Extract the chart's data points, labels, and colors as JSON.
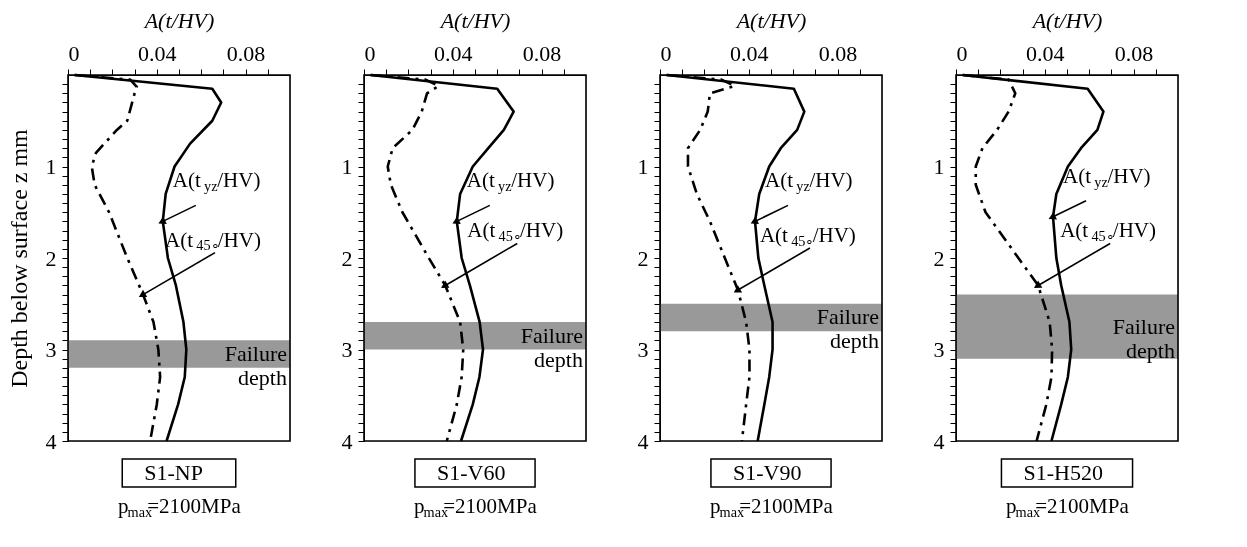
{
  "chart_data": [
    {
      "type": "line",
      "xlabel": "A(t/HV)",
      "ylabel": "Depth below surface  z  mm",
      "title": "S1-NP",
      "subtitle": "p$_{max}$=2100MPa",
      "xlim": [
        0,
        0.1
      ],
      "xticks": [
        0,
        {
          "value": 0.01,
          "label": null
        },
        {
          "value": 0.02,
          "label": null
        },
        {
          "value": 0.03,
          "label": null
        },
        0.04,
        {
          "value": 0.05,
          "label": null
        },
        {
          "value": 0.06,
          "label": null
        },
        {
          "value": 0.07,
          "label": null
        },
        0.08,
        {
          "value": 0.09,
          "label": null
        }
      ],
      "ylim": [
        4,
        0
      ],
      "yticks": [
        {
          "value": 0.1,
          "label": null
        },
        {
          "value": 0.2,
          "label": null
        },
        {
          "value": 0.3,
          "label": null
        },
        {
          "value": 0.4,
          "label": null
        },
        {
          "value": 0.5,
          "label": null
        },
        {
          "value": 0.6,
          "label": null
        },
        {
          "value": 0.7,
          "label": null
        },
        {
          "value": 0.8,
          "label": null
        },
        {
          "value": 0.9,
          "label": null
        },
        1,
        {
          "value": 1.1,
          "label": null
        },
        {
          "value": 1.2,
          "label": null
        },
        {
          "value": 1.3,
          "label": null
        },
        {
          "value": 1.4,
          "label": null
        },
        {
          "value": 1.5,
          "label": null
        },
        {
          "value": 1.6,
          "label": null
        },
        {
          "value": 1.7,
          "label": null
        },
        {
          "value": 1.8,
          "label": null
        },
        {
          "value": 1.9,
          "label": null
        },
        2,
        {
          "value": 2.1,
          "label": null
        },
        {
          "value": 2.2,
          "label": null
        },
        {
          "value": 2.3,
          "label": null
        },
        {
          "value": 2.4,
          "label": null
        },
        {
          "value": 2.5,
          "label": null
        },
        {
          "value": 2.6,
          "label": null
        },
        {
          "value": 2.7,
          "label": null
        },
        {
          "value": 2.8,
          "label": null
        },
        {
          "value": 2.9,
          "label": null
        },
        3,
        {
          "value": 3.1,
          "label": null
        },
        {
          "value": 3.2,
          "label": null
        },
        {
          "value": 3.3,
          "label": null
        },
        {
          "value": 3.4,
          "label": null
        },
        {
          "value": 3.5,
          "label": null
        },
        {
          "value": 3.6,
          "label": null
        },
        {
          "value": 3.7,
          "label": null
        },
        {
          "value": 3.8,
          "label": null
        },
        {
          "value": 3.9,
          "label": null
        },
        4
      ],
      "grid": false,
      "series": [
        {
          "color": "#000000",
          "line_style": "solid",
          "x": [
            0.003,
            0.065,
            0.069,
            0.065,
            0.055,
            0.048,
            0.044,
            0.0427,
            0.045,
            0.0486,
            0.052,
            0.0533,
            0.0526,
            0.0496,
            0.0444
          ],
          "values": [
            0,
            0.15,
            0.3,
            0.5,
            0.75,
            1,
            1.3,
            1.6,
            2,
            2.3,
            2.7,
            3,
            3.3,
            3.6,
            4
          ]
        },
        {
          "color": "#000000",
          "line_style": "dashed",
          "x": [
            0.003,
            0.028,
            0.031,
            0.03,
            0.0267,
            0.022,
            0.0126,
            0.0107,
            0.012,
            0.0185,
            0.0267,
            0.0338,
            0.0385,
            0.0407,
            0.0415,
            0.04,
            0.037
          ],
          "values": [
            0,
            0.05,
            0.13,
            0.2,
            0.5,
            0.6,
            0.85,
            1,
            1.2,
            1.5,
            2,
            2.4,
            2.7,
            3,
            3.3,
            3.6,
            4
          ]
        }
      ],
      "bands": [
        {
          "axis": "y",
          "from": 2.9,
          "to": 3.2,
          "label": "Failure depth",
          "color": "#999999"
        }
      ],
      "annotations": [
        {
          "text": "A(t$_{yz}$/HV)",
          "x": 0.0427,
          "y": 1.6
        },
        {
          "text": "A(t$_{45∘}$/HV)",
          "x": 0.0338,
          "y": 2.4
        }
      ]
    },
    {
      "type": "line",
      "xlabel": "A(t/HV)",
      "title": "S1-V60",
      "subtitle": "p$_{max}$=2100MPa",
      "xlim": [
        0,
        0.1
      ],
      "xticks": [
        0,
        {
          "value": 0.01,
          "label": null
        },
        {
          "value": 0.02,
          "label": null
        },
        {
          "value": 0.03,
          "label": null
        },
        0.04,
        {
          "value": 0.05,
          "label": null
        },
        {
          "value": 0.06,
          "label": null
        },
        {
          "value": 0.07,
          "label": null
        },
        0.08,
        {
          "value": 0.09,
          "label": null
        }
      ],
      "ylim": [
        4,
        0
      ],
      "yticks": [
        {
          "value": 0.1,
          "label": null
        },
        {
          "value": 0.2,
          "label": null
        },
        {
          "value": 0.3,
          "label": null
        },
        {
          "value": 0.4,
          "label": null
        },
        {
          "value": 0.5,
          "label": null
        },
        {
          "value": 0.6,
          "label": null
        },
        {
          "value": 0.7,
          "label": null
        },
        {
          "value": 0.8,
          "label": null
        },
        {
          "value": 0.9,
          "label": null
        },
        1,
        {
          "value": 1.1,
          "label": null
        },
        {
          "value": 1.2,
          "label": null
        },
        {
          "value": 1.3,
          "label": null
        },
        {
          "value": 1.4,
          "label": null
        },
        {
          "value": 1.5,
          "label": null
        },
        {
          "value": 1.6,
          "label": null
        },
        {
          "value": 1.7,
          "label": null
        },
        {
          "value": 1.8,
          "label": null
        },
        {
          "value": 1.9,
          "label": null
        },
        2,
        {
          "value": 2.1,
          "label": null
        },
        {
          "value": 2.2,
          "label": null
        },
        {
          "value": 2.3,
          "label": null
        },
        {
          "value": 2.4,
          "label": null
        },
        {
          "value": 2.5,
          "label": null
        },
        {
          "value": 2.6,
          "label": null
        },
        {
          "value": 2.7,
          "label": null
        },
        {
          "value": 2.8,
          "label": null
        },
        {
          "value": 2.9,
          "label": null
        },
        3,
        {
          "value": 3.1,
          "label": null
        },
        {
          "value": 3.2,
          "label": null
        },
        {
          "value": 3.3,
          "label": null
        },
        {
          "value": 3.4,
          "label": null
        },
        {
          "value": 3.5,
          "label": null
        },
        {
          "value": 3.6,
          "label": null
        },
        {
          "value": 3.7,
          "label": null
        },
        {
          "value": 3.8,
          "label": null
        },
        {
          "value": 3.9,
          "label": null
        },
        4
      ],
      "grid": false,
      "series": [
        {
          "color": "#000000",
          "line_style": "solid",
          "x": [
            0.003,
            0.06,
            0.0674,
            0.063,
            0.056,
            0.049,
            0.0433,
            0.0418,
            0.044,
            0.0477,
            0.0521,
            0.0536,
            0.052,
            0.049,
            0.0437
          ],
          "values": [
            0,
            0.15,
            0.4,
            0.6,
            0.8,
            1,
            1.3,
            1.6,
            2,
            2.3,
            2.7,
            3,
            3.3,
            3.6,
            4
          ]
        },
        {
          "color": "#000000",
          "line_style": "dashed",
          "x": [
            0.003,
            0.0277,
            0.0336,
            0.0284,
            0.026,
            0.0218,
            0.0129,
            0.0107,
            0.0121,
            0.0173,
            0.0292,
            0.0366,
            0.0433,
            0.0447,
            0.044,
            0.0418,
            0.0373
          ],
          "values": [
            0,
            0.05,
            0.12,
            0.2,
            0.4,
            0.6,
            0.8,
            1,
            1.2,
            1.5,
            2,
            2.3,
            2.7,
            3,
            3.3,
            3.6,
            4
          ]
        }
      ],
      "bands": [
        {
          "axis": "y",
          "from": 2.7,
          "to": 3.0,
          "label": "Failure depth",
          "color": "#999999"
        }
      ],
      "annotations": [
        {
          "text": "A(t$_{yz}$/HV)",
          "x": 0.0418,
          "y": 1.6
        },
        {
          "text": "A(t$_{45∘}$/HV)",
          "x": 0.0366,
          "y": 2.3
        }
      ]
    },
    {
      "type": "line",
      "xlabel": "A(t/HV)",
      "title": "S1-V90",
      "subtitle": "p$_{max}$=2100MPa",
      "xlim": [
        0,
        0.1
      ],
      "xticks": [
        0,
        {
          "value": 0.01,
          "label": null
        },
        {
          "value": 0.02,
          "label": null
        },
        {
          "value": 0.03,
          "label": null
        },
        0.04,
        {
          "value": 0.05,
          "label": null
        },
        {
          "value": 0.06,
          "label": null
        },
        {
          "value": 0.07,
          "label": null
        },
        0.08,
        {
          "value": 0.09,
          "label": null
        }
      ],
      "ylim": [
        4,
        0
      ],
      "yticks": [
        {
          "value": 0.1,
          "label": null
        },
        {
          "value": 0.2,
          "label": null
        },
        {
          "value": 0.3,
          "label": null
        },
        {
          "value": 0.4,
          "label": null
        },
        {
          "value": 0.5,
          "label": null
        },
        {
          "value": 0.6,
          "label": null
        },
        {
          "value": 0.7,
          "label": null
        },
        {
          "value": 0.8,
          "label": null
        },
        {
          "value": 0.9,
          "label": null
        },
        1,
        {
          "value": 1.1,
          "label": null
        },
        {
          "value": 1.2,
          "label": null
        },
        {
          "value": 1.3,
          "label": null
        },
        {
          "value": 1.4,
          "label": null
        },
        {
          "value": 1.5,
          "label": null
        },
        {
          "value": 1.6,
          "label": null
        },
        {
          "value": 1.7,
          "label": null
        },
        {
          "value": 1.8,
          "label": null
        },
        {
          "value": 1.9,
          "label": null
        },
        2,
        {
          "value": 2.1,
          "label": null
        },
        {
          "value": 2.2,
          "label": null
        },
        {
          "value": 2.3,
          "label": null
        },
        {
          "value": 2.4,
          "label": null
        },
        {
          "value": 2.5,
          "label": null
        },
        {
          "value": 2.6,
          "label": null
        },
        {
          "value": 2.7,
          "label": null
        },
        {
          "value": 2.8,
          "label": null
        },
        {
          "value": 2.9,
          "label": null
        },
        3,
        {
          "value": 3.1,
          "label": null
        },
        {
          "value": 3.2,
          "label": null
        },
        {
          "value": 3.3,
          "label": null
        },
        {
          "value": 3.4,
          "label": null
        },
        {
          "value": 3.5,
          "label": null
        },
        {
          "value": 3.6,
          "label": null
        },
        {
          "value": 3.7,
          "label": null
        },
        {
          "value": 3.8,
          "label": null
        },
        {
          "value": 3.9,
          "label": null
        },
        4
      ],
      "grid": false,
      "series": [
        {
          "color": "#000000",
          "line_style": "solid",
          "x": [
            0.003,
            0.0603,
            0.065,
            0.0618,
            0.0544,
            0.0492,
            0.0447,
            0.0428,
            0.0443,
            0.047,
            0.0507,
            0.0507,
            0.0492,
            0.047,
            0.044
          ],
          "values": [
            0,
            0.15,
            0.4,
            0.6,
            0.8,
            1,
            1.3,
            1.6,
            2,
            2.3,
            2.7,
            3,
            3.3,
            3.6,
            4
          ]
        },
        {
          "color": "#000000",
          "line_style": "dashed",
          "x": [
            0.003,
            0.0277,
            0.0336,
            0.0225,
            0.0215,
            0.0181,
            0.0126,
            0.0126,
            0.0166,
            0.0225,
            0.0292,
            0.0351,
            0.0388,
            0.0403,
            0.0403,
            0.0388,
            0.0369
          ],
          "values": [
            0,
            0.05,
            0.12,
            0.2,
            0.4,
            0.6,
            0.8,
            1,
            1.3,
            1.6,
            2,
            2.35,
            2.7,
            3,
            3.3,
            3.6,
            4
          ]
        }
      ],
      "bands": [
        {
          "axis": "y",
          "from": 2.5,
          "to": 2.8,
          "label": "Failure depth",
          "color": "#999999"
        }
      ],
      "annotations": [
        {
          "text": "A(t$_{yz}$/HV)",
          "x": 0.0428,
          "y": 1.6
        },
        {
          "text": "A(t$_{45∘}$/HV)",
          "x": 0.0351,
          "y": 2.35
        }
      ]
    },
    {
      "type": "line",
      "xlabel": "A(t/HV)",
      "title": "S1-H520",
      "subtitle": "p$_{max}$=2100MPa",
      "xlim": [
        0,
        0.1
      ],
      "xticks": [
        0,
        {
          "value": 0.01,
          "label": null
        },
        {
          "value": 0.02,
          "label": null
        },
        {
          "value": 0.03,
          "label": null
        },
        0.04,
        {
          "value": 0.05,
          "label": null
        },
        {
          "value": 0.06,
          "label": null
        },
        {
          "value": 0.07,
          "label": null
        },
        0.08,
        {
          "value": 0.09,
          "label": null
        }
      ],
      "ylim": [
        4,
        0
      ],
      "yticks": [
        {
          "value": 0.1,
          "label": null
        },
        {
          "value": 0.2,
          "label": null
        },
        {
          "value": 0.3,
          "label": null
        },
        {
          "value": 0.4,
          "label": null
        },
        {
          "value": 0.5,
          "label": null
        },
        {
          "value": 0.6,
          "label": null
        },
        {
          "value": 0.7,
          "label": null
        },
        {
          "value": 0.8,
          "label": null
        },
        {
          "value": 0.9,
          "label": null
        },
        1,
        {
          "value": 1.1,
          "label": null
        },
        {
          "value": 1.2,
          "label": null
        },
        {
          "value": 1.3,
          "label": null
        },
        {
          "value": 1.4,
          "label": null
        },
        {
          "value": 1.5,
          "label": null
        },
        {
          "value": 1.6,
          "label": null
        },
        {
          "value": 1.7,
          "label": null
        },
        {
          "value": 1.8,
          "label": null
        },
        {
          "value": 1.9,
          "label": null
        },
        2,
        {
          "value": 2.1,
          "label": null
        },
        {
          "value": 2.2,
          "label": null
        },
        {
          "value": 2.3,
          "label": null
        },
        {
          "value": 2.4,
          "label": null
        },
        {
          "value": 2.5,
          "label": null
        },
        {
          "value": 2.6,
          "label": null
        },
        {
          "value": 2.7,
          "label": null
        },
        {
          "value": 2.8,
          "label": null
        },
        {
          "value": 2.9,
          "label": null
        },
        3,
        {
          "value": 3.1,
          "label": null
        },
        {
          "value": 3.2,
          "label": null
        },
        {
          "value": 3.3,
          "label": null
        },
        {
          "value": 3.4,
          "label": null
        },
        {
          "value": 3.5,
          "label": null
        },
        {
          "value": 3.6,
          "label": null
        },
        {
          "value": 3.7,
          "label": null
        },
        {
          "value": 3.8,
          "label": null
        },
        {
          "value": 3.9,
          "label": null
        },
        4
      ],
      "grid": false,
      "series": [
        {
          "color": "#000000",
          "line_style": "solid",
          "x": [
            0.003,
            0.0593,
            0.0664,
            0.0637,
            0.0563,
            0.0504,
            0.0452,
            0.0437,
            0.0452,
            0.0474,
            0.0511,
            0.0519,
            0.0504,
            0.0474,
            0.043
          ],
          "values": [
            0,
            0.15,
            0.4,
            0.6,
            0.8,
            1,
            1.3,
            1.55,
            2,
            2.3,
            2.7,
            3,
            3.3,
            3.6,
            4
          ]
        },
        {
          "color": "#000000",
          "line_style": "dashed",
          "x": [
            0.003,
            0.0237,
            0.0267,
            0.0237,
            0.0185,
            0.0119,
            0.0089,
            0.0089,
            0.0133,
            0.0222,
            0.0281,
            0.037,
            0.0422,
            0.0433,
            0.043,
            0.0407,
            0.0363
          ],
          "values": [
            0,
            0.05,
            0.2,
            0.4,
            0.6,
            0.8,
            1,
            1.2,
            1.5,
            1.8,
            2,
            2.3,
            2.7,
            3,
            3.3,
            3.6,
            4
          ]
        }
      ],
      "bands": [
        {
          "axis": "y",
          "from": 2.4,
          "to": 3.1,
          "label": "Failure depth",
          "color": "#999999"
        }
      ],
      "annotations": [
        {
          "text": "A(t$_{yz}$/HV)",
          "x": 0.0437,
          "y": 1.55
        },
        {
          "text": "A(t$_{45∘}$/HV)",
          "x": 0.037,
          "y": 2.3
        }
      ]
    }
  ]
}
